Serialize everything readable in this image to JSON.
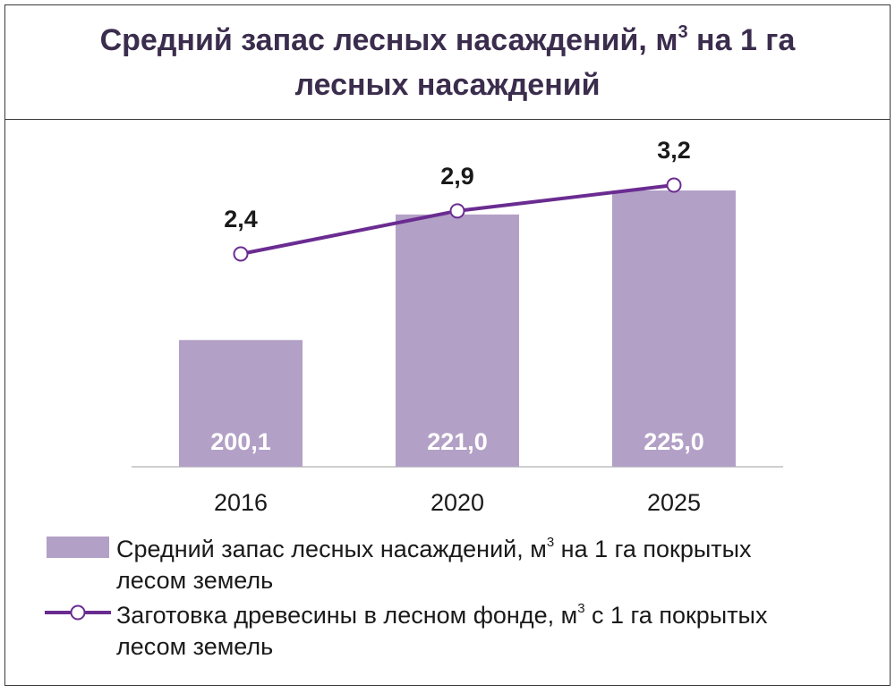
{
  "title": {
    "part1": "Средний запас лесных насаждений, м",
    "sup": "3",
    "part2": " на 1 га лесных насаждений"
  },
  "colors": {
    "bar": "#b3a0c6",
    "line": "#6a2c91",
    "bar_label": "#ffffff",
    "title": "#3b2d4d"
  },
  "chart_data": {
    "type": "bar",
    "categories": [
      "2016",
      "2020",
      "2025"
    ],
    "series": [
      {
        "name": "Средний запас лесных насаждений, м3 на 1 га покрытых лесом земель",
        "kind": "bar",
        "values": [
          200.1,
          221.0,
          225.0
        ],
        "labels": [
          "200,1",
          "221,0",
          "225,0"
        ]
      },
      {
        "name": "Заготовка древесины в лесном фонде, м3 с 1 га покрытых лесом земель",
        "kind": "line",
        "values": [
          2.4,
          2.9,
          3.2
        ],
        "labels": [
          "2,4",
          "2,9",
          "3,2"
        ]
      }
    ],
    "legend_position": "bottom"
  },
  "legend": {
    "bar": {
      "part1": "Средний запас лесных насаждений, м",
      "sup": "3",
      "part2": " на 1 га покрытых",
      "line2": "лесом земель"
    },
    "line": {
      "part1": "Заготовка древесины в лесном фонде, м",
      "sup": "3",
      "part2": " с 1 га покрытых",
      "line2": "лесом земель"
    }
  }
}
